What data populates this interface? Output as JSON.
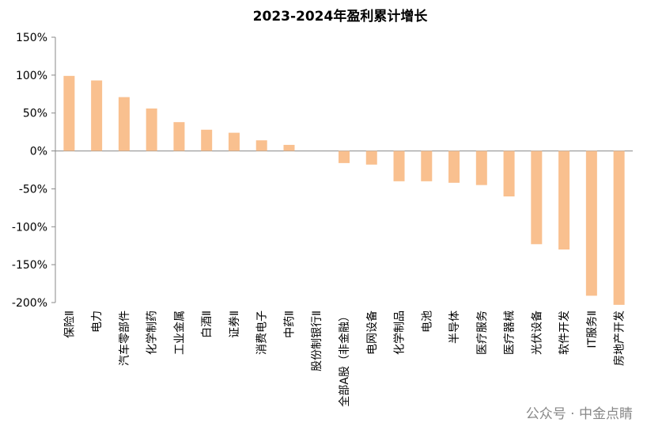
{
  "chart_data": {
    "type": "bar",
    "title": "2023-2024年盈利累计增长",
    "categories": [
      "保险Ⅱ",
      "电力",
      "汽车零部件",
      "化学制药",
      "工业金属",
      "白酒Ⅱ",
      "证券Ⅱ",
      "消费电子",
      "中药Ⅱ",
      "股份制银行Ⅱ",
      "全部A股（非金融）",
      "电网设备",
      "化学制品",
      "电池",
      "半导体",
      "医疗服务",
      "医疗器械",
      "光伏设备",
      "软件开发",
      "IT服务Ⅱ",
      "房地产开发"
    ],
    "values": [
      99,
      93,
      71,
      56,
      38,
      28,
      24,
      14,
      8,
      0,
      -16,
      -18,
      -40,
      -40,
      -42,
      -45,
      -60,
      -123,
      -130,
      -191,
      -203
    ],
    "color": "#f9c08f",
    "ylim": [
      -200,
      150
    ],
    "yticks": [
      {
        "value": -200,
        "label": "-200%"
      },
      {
        "value": -150,
        "label": "-150%"
      },
      {
        "value": -100,
        "label": "-100%"
      },
      {
        "value": -50,
        "label": "-50%"
      },
      {
        "value": 0,
        "label": "0%"
      },
      {
        "value": 50,
        "label": "50%"
      },
      {
        "value": 100,
        "label": "100%"
      },
      {
        "value": 150,
        "label": "150%"
      }
    ],
    "grid": false,
    "watermark": "公众号 · 中金点睛"
  }
}
